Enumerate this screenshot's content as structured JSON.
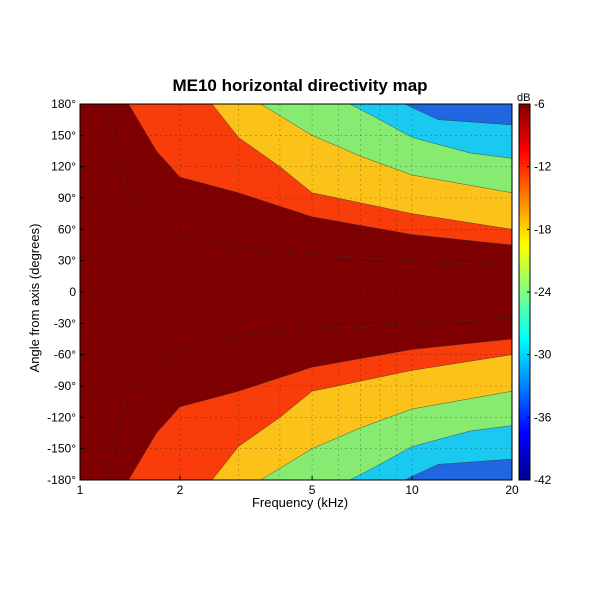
{
  "chart_data": {
    "type": "heatmap",
    "title": "ME10 horizontal directivity map",
    "xlabel": "Frequency (kHz)",
    "ylabel": "Angle from axis (degrees)",
    "x_scale": "log",
    "xlim": [
      1,
      20
    ],
    "ylim": [
      -180,
      180
    ],
    "x_ticks": [
      1,
      2,
      5,
      10,
      20
    ],
    "x_tick_labels": [
      "1",
      "2",
      "5",
      "10",
      "20"
    ],
    "y_ticks": [
      180,
      150,
      120,
      90,
      60,
      30,
      0,
      -30,
      -60,
      -90,
      -120,
      -150,
      -180
    ],
    "y_tick_labels": [
      "180°",
      "150°",
      "120°",
      "90°",
      "60°",
      "30°",
      "0",
      "-30°",
      "-60°",
      "-90°",
      "-120°",
      "-150°",
      "-180°"
    ],
    "grid": true,
    "symmetric_about_zero": true,
    "colorbar": {
      "label": "dB",
      "range": [
        -42,
        -6
      ],
      "ticks": [
        -6,
        -12,
        -18,
        -24,
        -30,
        -36,
        -42
      ],
      "tick_labels": [
        "-6",
        "-12",
        "-18",
        "-24",
        "-30",
        "-36",
        "-42"
      ]
    },
    "levels": [
      -6,
      -12,
      -18,
      -24,
      -30,
      -36
    ],
    "level_colors": [
      "#7f0000",
      "#f83c0a",
      "#fbc31a",
      "#86eb70",
      "#19c9f0",
      "#1f66e0"
    ],
    "contours": [
      {
        "level": -6,
        "freq_khz": [
          1.0,
          1.2,
          1.4,
          2,
          3,
          5,
          10,
          20
        ],
        "angle_deg": [
          180,
          180,
          90,
          55,
          42,
          36,
          30,
          25
        ]
      },
      {
        "level": -12,
        "freq_khz": [
          1.4,
          1.7,
          2,
          3,
          5,
          10,
          20
        ],
        "angle_deg": [
          180,
          135,
          110,
          95,
          72,
          55,
          45
        ]
      },
      {
        "level": -18,
        "freq_khz": [
          2.5,
          3,
          4,
          5,
          10,
          20
        ],
        "angle_deg": [
          180,
          148,
          120,
          95,
          75,
          60
        ]
      },
      {
        "level": -24,
        "freq_khz": [
          3.5,
          5,
          7,
          10,
          20
        ],
        "angle_deg": [
          180,
          150,
          130,
          112,
          95
        ]
      },
      {
        "level": -30,
        "freq_khz": [
          6.5,
          8,
          10,
          15,
          20
        ],
        "angle_deg": [
          180,
          165,
          148,
          133,
          128
        ]
      },
      {
        "level": -36,
        "freq_khz": [
          9.5,
          12,
          20
        ],
        "angle_deg": [
          180,
          165,
          160
        ]
      }
    ]
  }
}
